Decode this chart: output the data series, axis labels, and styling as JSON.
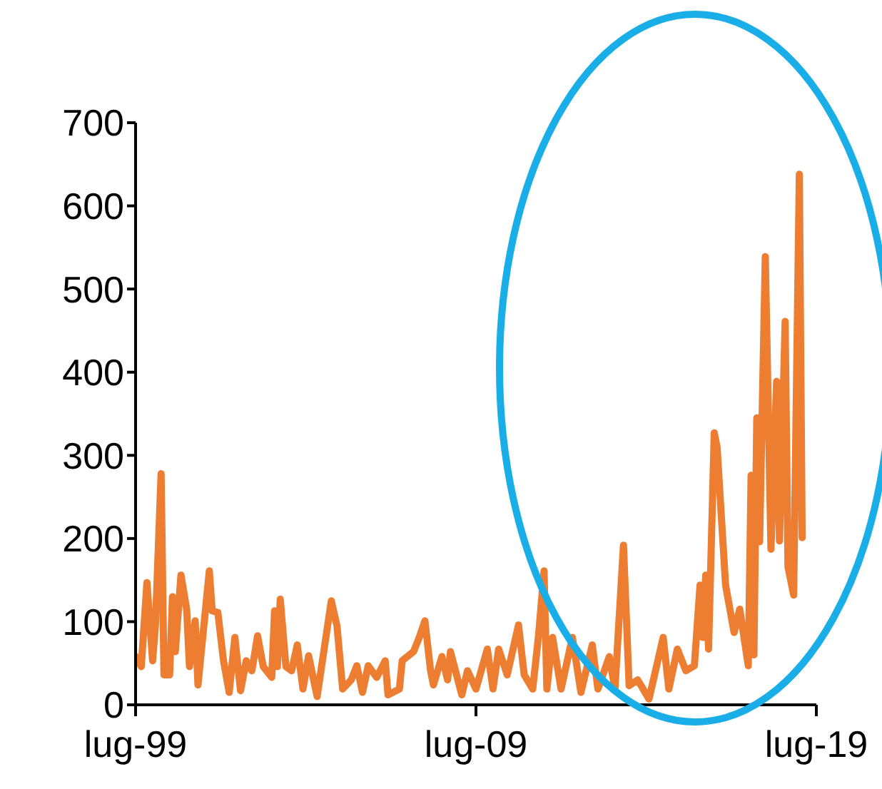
{
  "chart_data": {
    "type": "line",
    "x": [
      "1999-07",
      "1999-09",
      "1999-11",
      "2000-01",
      "2000-02",
      "2000-04",
      "2000-05",
      "2000-07",
      "2000-08",
      "2000-09",
      "2000-11",
      "2001-01",
      "2001-02",
      "2001-04",
      "2001-05",
      "2001-09",
      "2001-10",
      "2001-12",
      "2002-02",
      "2002-04",
      "2002-06",
      "2002-08",
      "2002-10",
      "2002-12",
      "2003-02",
      "2003-04",
      "2003-07",
      "2003-08",
      "2003-09",
      "2003-10",
      "2003-12",
      "2004-02",
      "2004-04",
      "2004-06",
      "2004-08",
      "2004-11",
      "2005-04",
      "2005-06",
      "2005-08",
      "2005-11",
      "2006-01",
      "2006-03",
      "2006-05",
      "2006-08",
      "2006-11",
      "2006-12",
      "2007-04",
      "2007-05",
      "2007-09",
      "2007-11",
      "2008-01",
      "2008-03",
      "2008-04",
      "2008-07",
      "2008-09",
      "2008-10",
      "2009-02",
      "2009-04",
      "2009-07",
      "2009-11",
      "2010-01",
      "2010-03",
      "2010-06",
      "2010-10",
      "2010-12",
      "2011-03",
      "2011-05",
      "2011-07",
      "2011-08",
      "2011-10",
      "2012-01",
      "2012-05",
      "2012-08",
      "2012-12",
      "2013-02",
      "2013-06",
      "2013-08",
      "2013-11",
      "2014-01",
      "2014-04",
      "2014-08",
      "2015-01",
      "2015-03",
      "2015-06",
      "2015-09",
      "2015-12",
      "2016-02",
      "2016-03",
      "2016-04",
      "2016-05",
      "2016-07",
      "2016-08",
      "2016-11",
      "2017-02",
      "2017-04",
      "2017-07",
      "2017-08",
      "2017-09",
      "2017-10",
      "2017-11",
      "2018-01",
      "2018-03",
      "2018-05",
      "2018-06",
      "2018-08",
      "2018-09",
      "2018-11",
      "2019-01",
      "2019-02"
    ],
    "series": [
      {
        "color": "#ed7d31",
        "values": [
          58,
          46,
          147,
          53,
          96,
          278,
          36,
          36,
          130,
          64,
          156,
          115,
          46,
          101,
          24,
          161,
          113,
          111,
          53,
          15,
          81,
          17,
          53,
          41,
          83,
          46,
          33,
          113,
          46,
          127,
          46,
          41,
          72,
          19,
          59,
          10,
          125,
          95,
          19,
          30,
          47,
          15,
          47,
          33,
          53,
          12,
          19,
          53,
          64,
          81,
          101,
          41,
          24,
          58,
          30,
          64,
          12,
          41,
          19,
          67,
          19,
          67,
          36,
          96,
          36,
          19,
          81,
          161,
          19,
          81,
          19,
          81,
          15,
          72,
          19,
          58,
          19,
          192,
          23,
          30,
          7,
          81,
          19,
          67,
          41,
          47,
          144,
          81,
          156,
          67,
          327,
          310,
          144,
          87,
          115,
          47,
          276,
          60,
          345,
          196,
          539,
          187,
          389,
          197,
          461,
          166,
          132,
          638,
          201
        ]
      }
    ],
    "xlim": [
      "1999-07",
      "2019-07"
    ],
    "xticks": [
      {
        "value": "1999-07",
        "label": "lug-99"
      },
      {
        "value": "2009-07",
        "label": "lug-09"
      },
      {
        "value": "2019-07",
        "label": "lug-19"
      }
    ],
    "ylim": [
      0,
      700
    ],
    "yticks": [
      0,
      100,
      200,
      300,
      400,
      500,
      600,
      700
    ],
    "grid": false,
    "legend": false,
    "marker": "none",
    "line_style": "solid"
  }
}
